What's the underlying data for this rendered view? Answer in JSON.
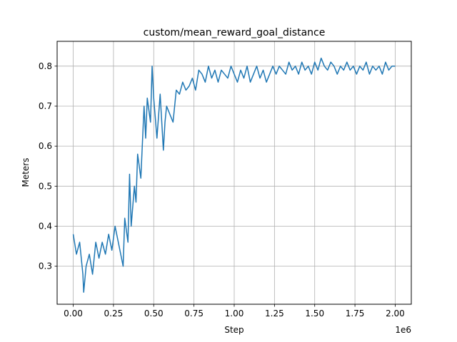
{
  "chart_data": {
    "type": "line",
    "title": "custom/mean_reward_goal_distance",
    "xlabel": "Step",
    "ylabel": "Meters",
    "x_offset_label": "1e6",
    "xlim": [
      -0.1,
      2.1
    ],
    "ylim": [
      0.205,
      0.862
    ],
    "x_ticks": [
      0.0,
      0.25,
      0.5,
      0.75,
      1.0,
      1.25,
      1.5,
      1.75,
      2.0
    ],
    "x_tick_labels": [
      "0.00",
      "0.25",
      "0.50",
      "0.75",
      "1.00",
      "1.25",
      "1.50",
      "1.75",
      "2.00"
    ],
    "y_ticks": [
      0.3,
      0.4,
      0.5,
      0.6,
      0.7,
      0.8
    ],
    "y_tick_labels": [
      "0.3",
      "0.4",
      "0.5",
      "0.6",
      "0.7",
      "0.8"
    ],
    "grid": true,
    "line_color": "#1f77b4",
    "series": [
      {
        "x": [
          0.0,
          0.02,
          0.04,
          0.06,
          0.065,
          0.08,
          0.1,
          0.12,
          0.14,
          0.16,
          0.18,
          0.2,
          0.22,
          0.24,
          0.26,
          0.28,
          0.3,
          0.31,
          0.32,
          0.34,
          0.35,
          0.36,
          0.38,
          0.39,
          0.4,
          0.42,
          0.44,
          0.45,
          0.46,
          0.48,
          0.49,
          0.5,
          0.52,
          0.54,
          0.56,
          0.57,
          0.58,
          0.6,
          0.62,
          0.64,
          0.66,
          0.68,
          0.7,
          0.72,
          0.74,
          0.76,
          0.78,
          0.8,
          0.82,
          0.84,
          0.86,
          0.88,
          0.9,
          0.92,
          0.94,
          0.96,
          0.98,
          1.0,
          1.02,
          1.04,
          1.06,
          1.08,
          1.1,
          1.12,
          1.14,
          1.16,
          1.18,
          1.2,
          1.22,
          1.24,
          1.26,
          1.28,
          1.3,
          1.32,
          1.34,
          1.36,
          1.38,
          1.4,
          1.42,
          1.44,
          1.46,
          1.48,
          1.5,
          1.52,
          1.54,
          1.56,
          1.58,
          1.6,
          1.62,
          1.64,
          1.66,
          1.68,
          1.7,
          1.72,
          1.74,
          1.76,
          1.78,
          1.8,
          1.82,
          1.84,
          1.86,
          1.88,
          1.9,
          1.92,
          1.94,
          1.96,
          1.98,
          2.0
        ],
        "values": [
          0.38,
          0.33,
          0.36,
          0.28,
          0.235,
          0.3,
          0.33,
          0.28,
          0.36,
          0.32,
          0.36,
          0.33,
          0.38,
          0.34,
          0.4,
          0.36,
          0.32,
          0.3,
          0.42,
          0.36,
          0.53,
          0.4,
          0.5,
          0.46,
          0.58,
          0.52,
          0.7,
          0.62,
          0.72,
          0.66,
          0.8,
          0.72,
          0.62,
          0.73,
          0.59,
          0.66,
          0.7,
          0.68,
          0.66,
          0.74,
          0.73,
          0.76,
          0.74,
          0.75,
          0.77,
          0.74,
          0.79,
          0.78,
          0.76,
          0.8,
          0.77,
          0.79,
          0.76,
          0.79,
          0.78,
          0.77,
          0.8,
          0.78,
          0.76,
          0.79,
          0.77,
          0.8,
          0.76,
          0.78,
          0.8,
          0.77,
          0.79,
          0.76,
          0.78,
          0.8,
          0.78,
          0.8,
          0.79,
          0.78,
          0.81,
          0.79,
          0.8,
          0.78,
          0.81,
          0.79,
          0.8,
          0.78,
          0.81,
          0.79,
          0.82,
          0.8,
          0.79,
          0.81,
          0.8,
          0.78,
          0.8,
          0.79,
          0.81,
          0.79,
          0.8,
          0.78,
          0.8,
          0.79,
          0.81,
          0.78,
          0.8,
          0.79,
          0.8,
          0.78,
          0.81,
          0.79,
          0.8,
          0.8
        ]
      }
    ]
  }
}
